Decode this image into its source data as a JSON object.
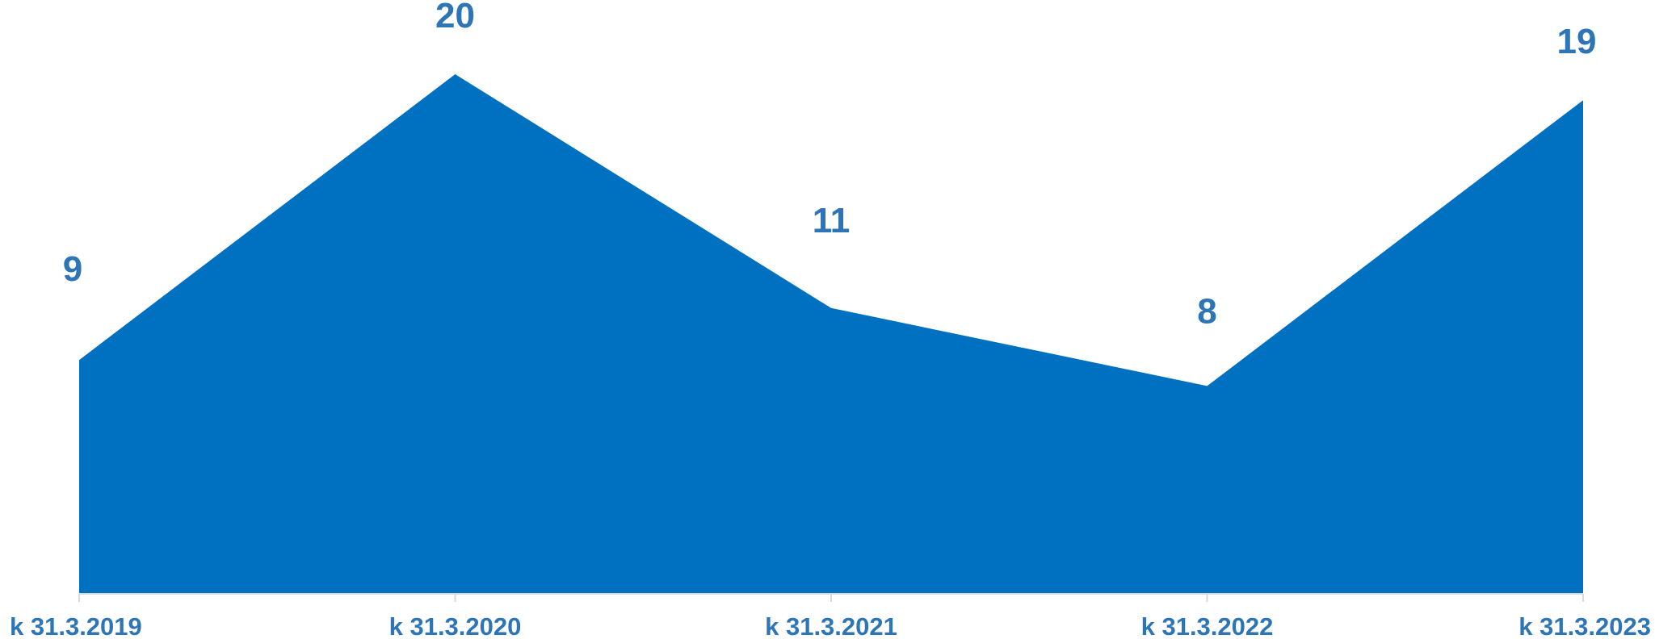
{
  "chart_data": {
    "type": "area",
    "categories": [
      "k 31.3.2019",
      "k 31.3.2020",
      "k 31.3.2021",
      "k 31.3.2022",
      "k 31.3.2023"
    ],
    "values": [
      9,
      20,
      11,
      8,
      19
    ],
    "data_labels": [
      "9",
      "20",
      "11",
      "8",
      "19"
    ],
    "ylim": [
      0,
      23
    ],
    "grid": false,
    "legend": "none",
    "colors": {
      "fill": "#0070C0",
      "label": "#2E75B6",
      "axis": "#D9D9D9"
    }
  }
}
